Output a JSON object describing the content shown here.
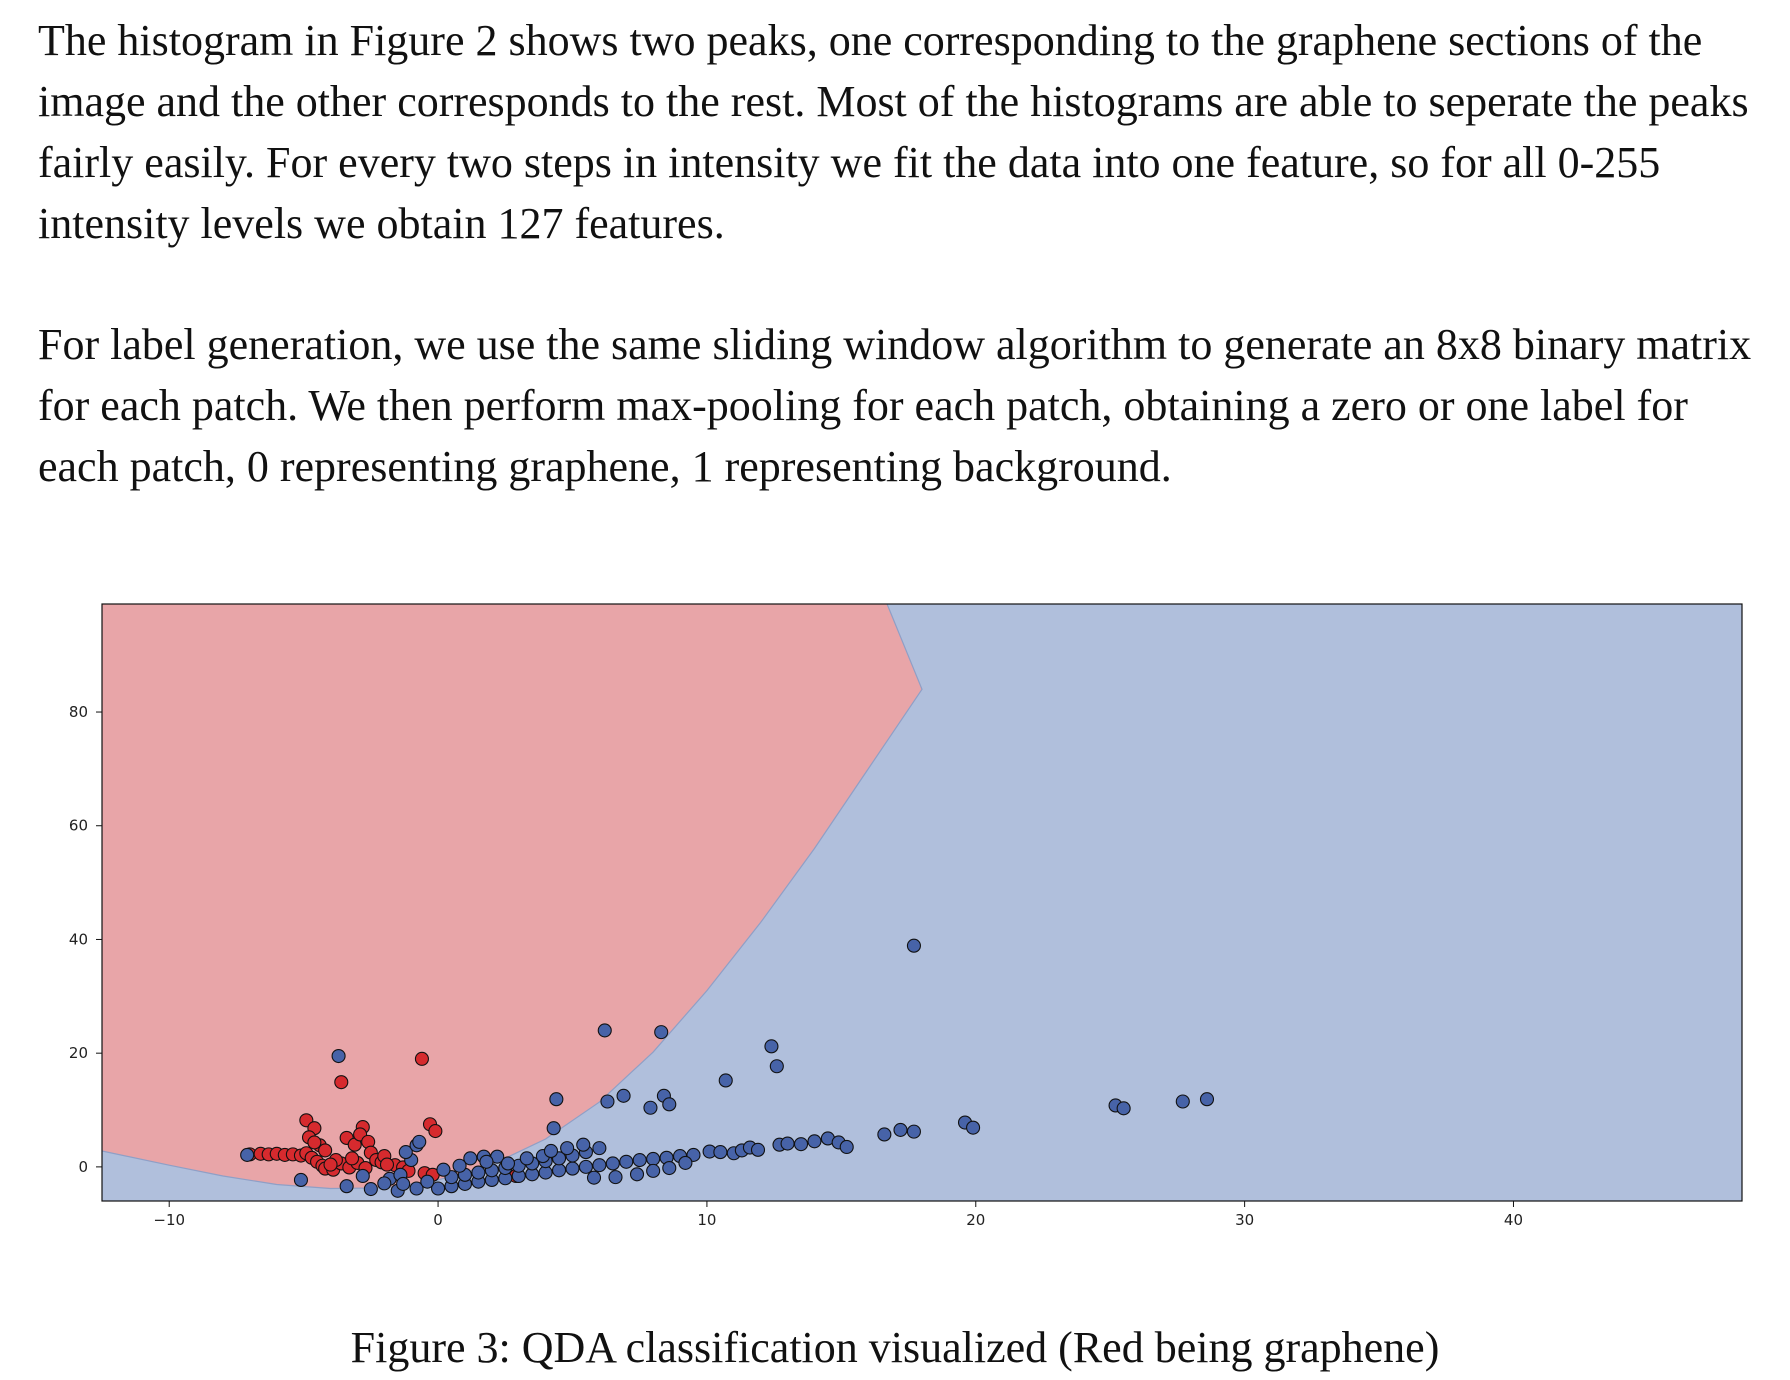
{
  "paragraphs": [
    {
      "lines": [
        "The histogram in Figure 2 shows two peaks, one corresponding to the graphene sections of the",
        "image and the other corresponds to the rest. Most of the histograms are able to seperate the peaks",
        "fairly easily. For every two steps in intensity we fit the data into one feature, so for all 0-255",
        "intensity levels we obtain 127 features."
      ]
    },
    {
      "lines": [
        "For label generation, we use the same sliding window algorithm to generate an 8x8 binary matrix",
        "for each patch. We then perform max-pooling for each patch, obtaining a zero or one label for",
        "each patch, 0 representing graphene, 1 representing background."
      ]
    }
  ],
  "figure": {
    "caption": "Figure 3: QDA classification visualized (Red being graphene)"
  },
  "chart_data": {
    "type": "scatter",
    "title": "",
    "xlabel": "",
    "ylabel": "",
    "xlim": [
      -12.5,
      48.5
    ],
    "ylim": [
      -6,
      99
    ],
    "x_ticks": [
      -10,
      0,
      10,
      20,
      30,
      40
    ],
    "y_ticks": [
      0,
      20,
      40,
      60,
      80
    ],
    "x_tick_labels": [
      "−10",
      "0",
      "10",
      "20",
      "30",
      "40"
    ],
    "y_tick_labels": [
      "0",
      "20",
      "40",
      "60",
      "80"
    ],
    "grid": false,
    "decision_regions": {
      "graphene_region_color": "#e8a5a8",
      "background_region_color": "#b0bfdc",
      "boundary_color": "#8f9fc6",
      "boundary": [
        [
          -12.5,
          2.8
        ],
        [
          -10,
          0.3
        ],
        [
          -8,
          -1.6
        ],
        [
          -6,
          -3.1
        ],
        [
          -4,
          -3.8
        ],
        [
          -2,
          -3.7
        ],
        [
          0,
          -2.3
        ],
        [
          2,
          0.4
        ],
        [
          4,
          4.9
        ],
        [
          6,
          11.4
        ],
        [
          8,
          20.2
        ],
        [
          10,
          31
        ],
        [
          12,
          43
        ],
        [
          14,
          56
        ],
        [
          16,
          70
        ],
        [
          18,
          84
        ],
        [
          16.7,
          99
        ]
      ]
    },
    "series": [
      {
        "color": "#d62a2e",
        "points": [
          [
            -7,
            2.2
          ],
          [
            -6.6,
            2.3
          ],
          [
            -6.3,
            2.2
          ],
          [
            -6,
            2.3
          ],
          [
            -5.7,
            2.1
          ],
          [
            -5.4,
            2.2
          ],
          [
            -5.1,
            2
          ],
          [
            -4.9,
            2.4
          ],
          [
            -4.7,
            1.6
          ],
          [
            -4.5,
            0.9
          ],
          [
            -4.3,
            0.2
          ],
          [
            -4.2,
            -0.3
          ],
          [
            -4.9,
            8.2
          ],
          [
            -4.6,
            6.8
          ],
          [
            -4.8,
            5.2
          ],
          [
            -4.4,
            3.8
          ],
          [
            -4.6,
            4.3
          ],
          [
            -4.2,
            2.9
          ],
          [
            -3.6,
            14.9
          ],
          [
            -3.4,
            5.1
          ],
          [
            -3.1,
            3.9
          ],
          [
            -2.8,
            7
          ],
          [
            -2.9,
            5.7
          ],
          [
            -2.6,
            4.4
          ],
          [
            -2.5,
            2.5
          ],
          [
            -2.3,
            1.2
          ],
          [
            -2.1,
            0.8
          ],
          [
            -3.9,
            -0.5
          ],
          [
            -3.6,
            0.6
          ],
          [
            -3.3,
            -0.1
          ],
          [
            -3,
            0.7
          ],
          [
            -2.7,
            -0.2
          ],
          [
            -1.6,
            0.3
          ],
          [
            -1.3,
            -0.1
          ],
          [
            -0.6,
            19
          ],
          [
            -0.3,
            7.5
          ],
          [
            -0.1,
            6.3
          ],
          [
            -0.5,
            -1.1
          ],
          [
            -0.2,
            -1.4
          ],
          [
            2.9,
            -1.6
          ],
          [
            -3.2,
            1.5
          ],
          [
            -2,
            1.9
          ],
          [
            -1.9,
            0.4
          ],
          [
            -1.1,
            -0.7
          ],
          [
            -3.8,
            1.2
          ],
          [
            -4,
            0.4
          ]
        ]
      },
      {
        "color": "#4763a8",
        "points": [
          [
            -7.1,
            2.1
          ],
          [
            -5.1,
            -2.3
          ],
          [
            -3.7,
            19.5
          ],
          [
            -3.4,
            -3.4
          ],
          [
            -2.8,
            -1.6
          ],
          [
            -2.5,
            -3.9
          ],
          [
            -1.8,
            -2.1
          ],
          [
            -1.5,
            -4.2
          ],
          [
            -1,
            1.2
          ],
          [
            -0.8,
            -3.8
          ],
          [
            -1.2,
            2.6
          ],
          [
            -0.8,
            3.8
          ],
          [
            -0.7,
            4.4
          ],
          [
            0,
            -3.8
          ],
          [
            0.5,
            -3.4
          ],
          [
            1,
            -3
          ],
          [
            1.5,
            -2.6
          ],
          [
            2,
            -2.3
          ],
          [
            2.5,
            -2
          ],
          [
            3,
            -1.6
          ],
          [
            3.5,
            -1.3
          ],
          [
            4,
            -1
          ],
          [
            4.5,
            -0.6
          ],
          [
            5,
            -0.3
          ],
          [
            5.5,
            0
          ],
          [
            6,
            0.3
          ],
          [
            6.5,
            0.6
          ],
          [
            7,
            0.9
          ],
          [
            7.5,
            1.2
          ],
          [
            8,
            1.4
          ],
          [
            8.5,
            1.6
          ],
          [
            9,
            1.9
          ],
          [
            9.5,
            2.1
          ],
          [
            0.5,
            -1.8
          ],
          [
            1,
            -1.4
          ],
          [
            1.5,
            -1
          ],
          [
            2,
            -0.6
          ],
          [
            2.5,
            -0.2
          ],
          [
            3,
            0.2
          ],
          [
            3.5,
            0.6
          ],
          [
            4,
            1
          ],
          [
            4.5,
            1.5
          ],
          [
            5,
            2
          ],
          [
            5.5,
            2.6
          ],
          [
            6,
            3.3
          ],
          [
            1.2,
            1.5
          ],
          [
            1.7,
            1.8
          ],
          [
            2.2,
            1.8
          ],
          [
            3.3,
            1.5
          ],
          [
            3.9,
            1.9
          ],
          [
            4.2,
            2.8
          ],
          [
            4.8,
            3.3
          ],
          [
            5.4,
            3.9
          ],
          [
            4.3,
            6.8
          ],
          [
            4.4,
            11.9
          ],
          [
            6.2,
            24
          ],
          [
            6.3,
            11.5
          ],
          [
            6.9,
            12.5
          ],
          [
            8.3,
            23.7
          ],
          [
            7.9,
            10.4
          ],
          [
            8.4,
            12.5
          ],
          [
            8.6,
            11
          ],
          [
            10.7,
            15.2
          ],
          [
            12.4,
            21.2
          ],
          [
            12.6,
            17.7
          ],
          [
            10.1,
            2.7
          ],
          [
            10.5,
            2.6
          ],
          [
            11,
            2.4
          ],
          [
            11.3,
            2.9
          ],
          [
            11.6,
            3.4
          ],
          [
            11.9,
            3
          ],
          [
            12.7,
            3.9
          ],
          [
            13,
            4.1
          ],
          [
            13.5,
            4
          ],
          [
            14,
            4.5
          ],
          [
            14.5,
            5
          ],
          [
            14.9,
            4.3
          ],
          [
            15.2,
            3.5
          ],
          [
            16.6,
            5.7
          ],
          [
            17.2,
            6.5
          ],
          [
            17.7,
            6.2
          ],
          [
            17.7,
            38.9
          ],
          [
            19.6,
            7.8
          ],
          [
            19.9,
            6.9
          ],
          [
            25.2,
            10.8
          ],
          [
            25.5,
            10.3
          ],
          [
            27.7,
            11.5
          ],
          [
            28.6,
            11.9
          ],
          [
            -2,
            -2.9
          ],
          [
            -1.4,
            -1.4
          ],
          [
            0.2,
            -0.5
          ],
          [
            0.8,
            0.2
          ],
          [
            1.8,
            0.9
          ],
          [
            2.6,
            0.6
          ],
          [
            6.6,
            -1.8
          ],
          [
            7.4,
            -1.3
          ],
          [
            8,
            -0.7
          ],
          [
            8.6,
            -0.2
          ],
          [
            9.2,
            0.7
          ],
          [
            5.8,
            -1.9
          ],
          [
            -0.4,
            -2.6
          ],
          [
            -1.3,
            -3
          ]
        ]
      }
    ]
  }
}
